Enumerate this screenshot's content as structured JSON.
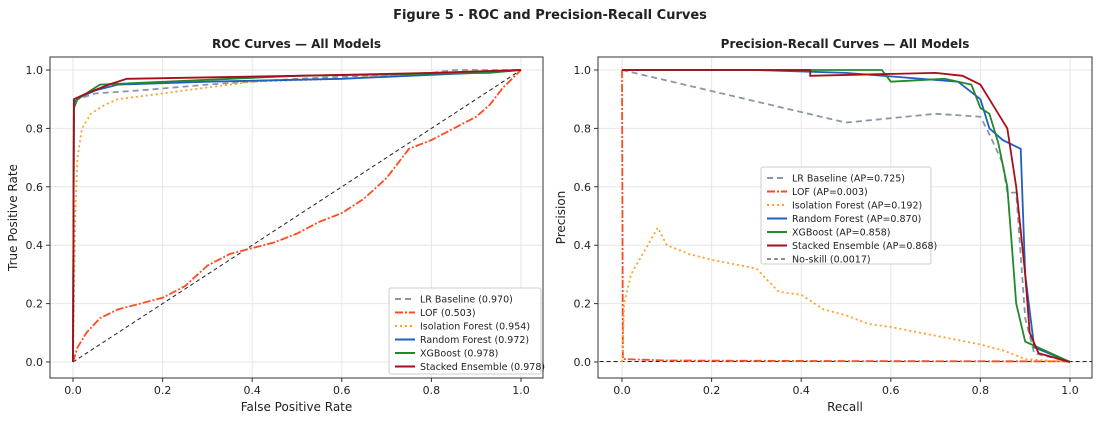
{
  "figure_title": "Figure 5 - ROC and Precision-Recall Curves",
  "colors": {
    "LR Baseline": "#8a97a8",
    "LOF": "#ff4a22",
    "Isolation Forest": "#ffa024",
    "Random Forest": "#1f5fbf",
    "XGBoost": "#23882a",
    "Stacked Ensemble": "#a80d18",
    "No-skill": "#222222"
  },
  "chart_data": [
    {
      "type": "line",
      "title": "ROC Curves — All Models",
      "xlabel": "False Positive Rate",
      "ylabel": "True Positive Rate",
      "xlim": [
        0,
        1
      ],
      "ylim": [
        0,
        1
      ],
      "xticks": [
        "0.0",
        "0.2",
        "0.4",
        "0.6",
        "0.8",
        "1.0"
      ],
      "yticks": [
        "0.0",
        "0.2",
        "0.4",
        "0.6",
        "0.8",
        "1.0"
      ],
      "grid": true,
      "legend_position": "lower-right",
      "series": [
        {
          "name": "LR Baseline (0.970)",
          "key": "LR Baseline",
          "dash": "6,4",
          "points": [
            [
              0,
              0
            ],
            [
              0.002,
              0.88
            ],
            [
              0.01,
              0.9
            ],
            [
              0.05,
              0.92
            ],
            [
              0.15,
              0.93
            ],
            [
              0.3,
              0.95
            ],
            [
              0.5,
              0.97
            ],
            [
              0.8,
              0.99
            ],
            [
              0.85,
              1
            ],
            [
              1,
              1
            ]
          ]
        },
        {
          "name": "LOF (0.503)",
          "key": "LOF",
          "dash": "8,2,2,2",
          "points": [
            [
              0,
              0
            ],
            [
              0.01,
              0.05
            ],
            [
              0.03,
              0.1
            ],
            [
              0.06,
              0.15
            ],
            [
              0.1,
              0.18
            ],
            [
              0.15,
              0.2
            ],
            [
              0.2,
              0.22
            ],
            [
              0.25,
              0.26
            ],
            [
              0.3,
              0.33
            ],
            [
              0.35,
              0.37
            ],
            [
              0.4,
              0.39
            ],
            [
              0.45,
              0.41
            ],
            [
              0.5,
              0.44
            ],
            [
              0.55,
              0.48
            ],
            [
              0.6,
              0.51
            ],
            [
              0.65,
              0.56
            ],
            [
              0.7,
              0.63
            ],
            [
              0.75,
              0.73
            ],
            [
              0.8,
              0.76
            ],
            [
              0.85,
              0.8
            ],
            [
              0.9,
              0.84
            ],
            [
              0.93,
              0.88
            ],
            [
              0.96,
              0.94
            ],
            [
              1,
              1
            ]
          ]
        },
        {
          "name": "Isolation Forest (0.954)",
          "key": "Isolation Forest",
          "dash": "2,3",
          "points": [
            [
              0,
              0
            ],
            [
              0.005,
              0.5
            ],
            [
              0.01,
              0.7
            ],
            [
              0.02,
              0.8
            ],
            [
              0.04,
              0.85
            ],
            [
              0.07,
              0.88
            ],
            [
              0.1,
              0.9
            ],
            [
              0.15,
              0.91
            ],
            [
              0.2,
              0.92
            ],
            [
              0.3,
              0.94
            ],
            [
              0.4,
              0.96
            ],
            [
              0.6,
              0.97
            ],
            [
              0.8,
              0.99
            ],
            [
              1,
              1
            ]
          ]
        },
        {
          "name": "Random Forest (0.972)",
          "key": "Random Forest",
          "dash": "",
          "points": [
            [
              0,
              0
            ],
            [
              0.002,
              0.89
            ],
            [
              0.02,
              0.91
            ],
            [
              0.05,
              0.93
            ],
            [
              0.1,
              0.95
            ],
            [
              0.3,
              0.96
            ],
            [
              0.6,
              0.97
            ],
            [
              0.9,
              0.99
            ],
            [
              1,
              1
            ]
          ]
        },
        {
          "name": "XGBoost (0.978)",
          "key": "XGBoost",
          "dash": "",
          "points": [
            [
              0,
              0
            ],
            [
              0.002,
              0.87
            ],
            [
              0.01,
              0.9
            ],
            [
              0.04,
              0.93
            ],
            [
              0.06,
              0.95
            ],
            [
              0.35,
              0.97
            ],
            [
              0.5,
              0.98
            ],
            [
              0.93,
              0.99
            ],
            [
              1,
              1
            ]
          ]
        },
        {
          "name": "Stacked Ensemble (0.978)",
          "key": "Stacked Ensemble",
          "dash": "",
          "points": [
            [
              0,
              0
            ],
            [
              0.002,
              0.9
            ],
            [
              0.03,
              0.92
            ],
            [
              0.08,
              0.95
            ],
            [
              0.12,
              0.97
            ],
            [
              0.5,
              0.98
            ],
            [
              0.8,
              0.99
            ],
            [
              1,
              1
            ]
          ]
        },
        {
          "name": "",
          "key": "No-skill",
          "dash": "4,3",
          "thin": true,
          "points": [
            [
              0,
              0
            ],
            [
              1,
              1
            ]
          ]
        }
      ]
    },
    {
      "type": "line",
      "title": "Precision-Recall Curves — All Models",
      "xlabel": "Recall",
      "ylabel": "Precision",
      "xlim": [
        0,
        1
      ],
      "ylim": [
        0,
        1
      ],
      "xticks": [
        "0.0",
        "0.2",
        "0.4",
        "0.6",
        "0.8",
        "1.0"
      ],
      "yticks": [
        "0.0",
        "0.2",
        "0.4",
        "0.6",
        "0.8",
        "1.0"
      ],
      "grid": true,
      "legend_position": "center",
      "series": [
        {
          "name": "LR Baseline (AP=0.725)",
          "key": "LR Baseline",
          "dash": "6,4",
          "points": [
            [
              0,
              1
            ],
            [
              0.5,
              0.82
            ],
            [
              0.7,
              0.85
            ],
            [
              0.8,
              0.84
            ],
            [
              0.82,
              0.78
            ],
            [
              0.85,
              0.68
            ],
            [
              0.86,
              0.58
            ],
            [
              0.88,
              0.58
            ],
            [
              0.9,
              0.15
            ],
            [
              0.92,
              0.03
            ],
            [
              1,
              0
            ]
          ]
        },
        {
          "name": "LOF (AP=0.003)",
          "key": "LOF",
          "dash": "8,2,2,2",
          "points": [
            [
              0,
              1
            ],
            [
              0.002,
              0.01
            ],
            [
              0.1,
              0.005
            ],
            [
              0.5,
              0.003
            ],
            [
              1,
              0.002
            ]
          ]
        },
        {
          "name": "Isolation Forest (AP=0.192)",
          "key": "Isolation Forest",
          "dash": "2,3",
          "points": [
            [
              0,
              0
            ],
            [
              0.005,
              0.2
            ],
            [
              0.02,
              0.3
            ],
            [
              0.05,
              0.38
            ],
            [
              0.08,
              0.46
            ],
            [
              0.1,
              0.4
            ],
            [
              0.15,
              0.37
            ],
            [
              0.2,
              0.35
            ],
            [
              0.3,
              0.32
            ],
            [
              0.35,
              0.24
            ],
            [
              0.4,
              0.23
            ],
            [
              0.45,
              0.18
            ],
            [
              0.5,
              0.16
            ],
            [
              0.55,
              0.13
            ],
            [
              0.6,
              0.12
            ],
            [
              0.7,
              0.09
            ],
            [
              0.8,
              0.06
            ],
            [
              0.85,
              0.04
            ],
            [
              0.9,
              0.01
            ],
            [
              1,
              0
            ]
          ]
        },
        {
          "name": "Random Forest (AP=0.870)",
          "key": "Random Forest",
          "dash": "",
          "points": [
            [
              0,
              1
            ],
            [
              0.3,
              1
            ],
            [
              0.5,
              0.99
            ],
            [
              0.75,
              0.96
            ],
            [
              0.8,
              0.9
            ],
            [
              0.82,
              0.8
            ],
            [
              0.85,
              0.76
            ],
            [
              0.89,
              0.73
            ],
            [
              0.9,
              0.3
            ],
            [
              0.92,
              0.05
            ],
            [
              1,
              0
            ]
          ]
        },
        {
          "name": "XGBoost (AP=0.858)",
          "key": "XGBoost",
          "dash": "",
          "points": [
            [
              0,
              1
            ],
            [
              0.58,
              1
            ],
            [
              0.6,
              0.96
            ],
            [
              0.72,
              0.97
            ],
            [
              0.78,
              0.95
            ],
            [
              0.8,
              0.87
            ],
            [
              0.82,
              0.85
            ],
            [
              0.84,
              0.75
            ],
            [
              0.86,
              0.6
            ],
            [
              0.87,
              0.4
            ],
            [
              0.88,
              0.2
            ],
            [
              0.9,
              0.07
            ],
            [
              1,
              0
            ]
          ]
        },
        {
          "name": "Stacked Ensemble (AP=0.868)",
          "key": "Stacked Ensemble",
          "dash": "",
          "points": [
            [
              0,
              1
            ],
            [
              0.42,
              1
            ],
            [
              0.42,
              0.98
            ],
            [
              0.7,
              0.99
            ],
            [
              0.76,
              0.98
            ],
            [
              0.8,
              0.95
            ],
            [
              0.82,
              0.9
            ],
            [
              0.84,
              0.85
            ],
            [
              0.86,
              0.8
            ],
            [
              0.88,
              0.6
            ],
            [
              0.9,
              0.3
            ],
            [
              0.91,
              0.1
            ],
            [
              0.93,
              0.03
            ],
            [
              1,
              0
            ]
          ]
        },
        {
          "name": "No-skill (0.0017)",
          "key": "No-skill",
          "dash": "4,3",
          "thin": true,
          "points": [
            [
              -0.05,
              0.0017
            ],
            [
              1.05,
              0.0017
            ]
          ]
        }
      ]
    }
  ]
}
